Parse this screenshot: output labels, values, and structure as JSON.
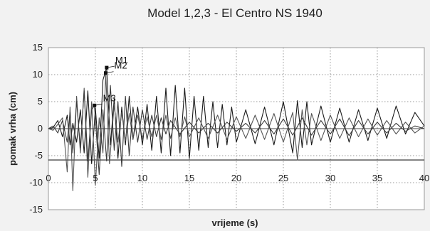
{
  "chart_data": {
    "type": "line",
    "title": "Model 1,2,3 - El Centro NS 1940",
    "xlabel": "vrijeme (s)",
    "ylabel": "pomak vrha (cm)",
    "xlim": [
      0,
      40
    ],
    "ylim": [
      -15,
      15
    ],
    "x_ticks": [
      0,
      5,
      10,
      15,
      20,
      25,
      30,
      35,
      40
    ],
    "y_ticks": [
      15,
      10,
      5,
      0,
      -5,
      -10,
      -15
    ],
    "grid": true,
    "grid_style": "dotted",
    "reference_line_y": -5.8,
    "annotations": [
      {
        "label": "M1",
        "x": 6.2,
        "y": 11.3
      },
      {
        "label": "M2",
        "x": 6.1,
        "y": 10.3
      },
      {
        "label": "M3",
        "x": 4.9,
        "y": 4.3
      }
    ],
    "series": [
      {
        "color": "#1a1a1a",
        "x": [
          0,
          0.5,
          1,
          1.5,
          2,
          2.3,
          2.6,
          3,
          3.4,
          3.8,
          4.2,
          4.6,
          5,
          5.4,
          5.8,
          6.2,
          6.6,
          7,
          7.4,
          7.8,
          8.2,
          8.6,
          9,
          9.5,
          10,
          10.5,
          11,
          11.5,
          12,
          12.5,
          13,
          13.5,
          14,
          14.5,
          15,
          15.5,
          16,
          16.5,
          17,
          17.5,
          18,
          18.5,
          19,
          19.5,
          20,
          21,
          22,
          23,
          24,
          25,
          26,
          26.5,
          27,
          27.5,
          28,
          29,
          30,
          31,
          32,
          33,
          34,
          35,
          36,
          37,
          38,
          39,
          40
        ],
        "y": [
          0,
          0.2,
          1.5,
          -1.5,
          2.5,
          -3,
          1,
          -2.5,
          3.5,
          -4.5,
          7,
          -6.5,
          3.8,
          -5.5,
          9,
          11.3,
          -3,
          5.5,
          -5.5,
          4,
          -3,
          6,
          -2,
          4,
          -3,
          4.5,
          -4,
          6,
          -4.5,
          7.5,
          -5,
          8,
          -4.5,
          7.5,
          -5.5,
          6,
          -4,
          6,
          -3.5,
          5,
          -3.5,
          4.5,
          -3,
          4,
          -2.5,
          3.5,
          -2.8,
          4,
          -3,
          5,
          -4.5,
          5.2,
          -3.5,
          5,
          -3,
          4.2,
          -2.5,
          3.8,
          -2.5,
          3.5,
          -2.2,
          3.8,
          -1.8,
          4.2,
          -1,
          3,
          0.5
        ]
      },
      {
        "color": "#555555",
        "x": [
          0,
          0.5,
          1,
          1.5,
          2,
          2.3,
          2.6,
          3,
          3.4,
          3.8,
          4.2,
          4.6,
          5,
          5.4,
          5.8,
          6.1,
          6.5,
          7,
          7.4,
          7.8,
          8.2,
          8.6,
          9,
          9.5,
          10,
          10.5,
          11,
          11.5,
          12,
          12.5,
          13,
          13.5,
          14,
          14.5,
          15,
          16,
          17,
          18,
          19,
          20,
          21,
          22,
          23,
          24,
          25,
          26,
          26.5,
          27,
          27.5,
          28,
          29,
          30,
          31,
          32,
          33,
          34,
          35,
          36,
          37,
          38,
          39,
          40
        ],
        "y": [
          0,
          -0.3,
          0.8,
          2,
          -8,
          4,
          -11.5,
          6,
          -4.5,
          7.5,
          -9,
          5,
          -10.5,
          2,
          -4.5,
          10.3,
          -6.5,
          4.5,
          -2.5,
          3,
          -2.2,
          2.8,
          -2,
          2.5,
          -1.8,
          2.2,
          -1.5,
          2.5,
          -2,
          2.5,
          -1.8,
          2,
          -1.5,
          2.2,
          -1.5,
          2,
          -1.8,
          2.5,
          -2,
          2.2,
          -1.8,
          2.5,
          -2,
          2.8,
          -2.5,
          3,
          -5.8,
          3.5,
          -3,
          2.8,
          -2.2,
          2.5,
          -1.8,
          2,
          -1.5,
          1.8,
          -1.2,
          1.5,
          -1,
          1.2,
          -0.8,
          0.5
        ]
      },
      {
        "color": "#3a3a3a",
        "x": [
          0,
          0.5,
          1,
          1.5,
          2,
          2.3,
          2.6,
          3,
          3.4,
          3.8,
          4.2,
          4.6,
          4.9,
          5.4,
          5.8,
          6.2,
          6.6,
          7,
          7.4,
          7.8,
          8.2,
          8.6,
          9,
          9.5,
          10,
          10.5,
          11,
          11.5,
          12,
          12.5,
          13,
          14,
          15,
          16,
          17,
          18,
          19,
          20,
          21,
          22,
          23,
          24,
          25,
          26,
          27,
          28,
          29,
          30,
          31,
          32,
          33,
          34,
          35,
          36,
          37,
          38,
          39,
          40
        ],
        "y": [
          0,
          0.5,
          -0.8,
          1.5,
          -2.5,
          3,
          -4.5,
          5,
          -3.5,
          7,
          -6,
          3.5,
          4.3,
          -8.5,
          3.5,
          -6,
          8,
          -4,
          5,
          -7,
          6,
          -5,
          4,
          -2.5,
          3.5,
          -2,
          2.5,
          -1.5,
          2,
          -1,
          1.5,
          -1,
          1.2,
          -0.8,
          1,
          -0.8,
          1.2,
          -0.5,
          1,
          -0.8,
          1.5,
          -1,
          1.8,
          -1.2,
          2,
          -1.2,
          1.5,
          -1,
          1.8,
          -1.3,
          1.5,
          -1,
          1.2,
          -0.8,
          1,
          -0.5,
          0.5,
          0
        ]
      }
    ]
  }
}
